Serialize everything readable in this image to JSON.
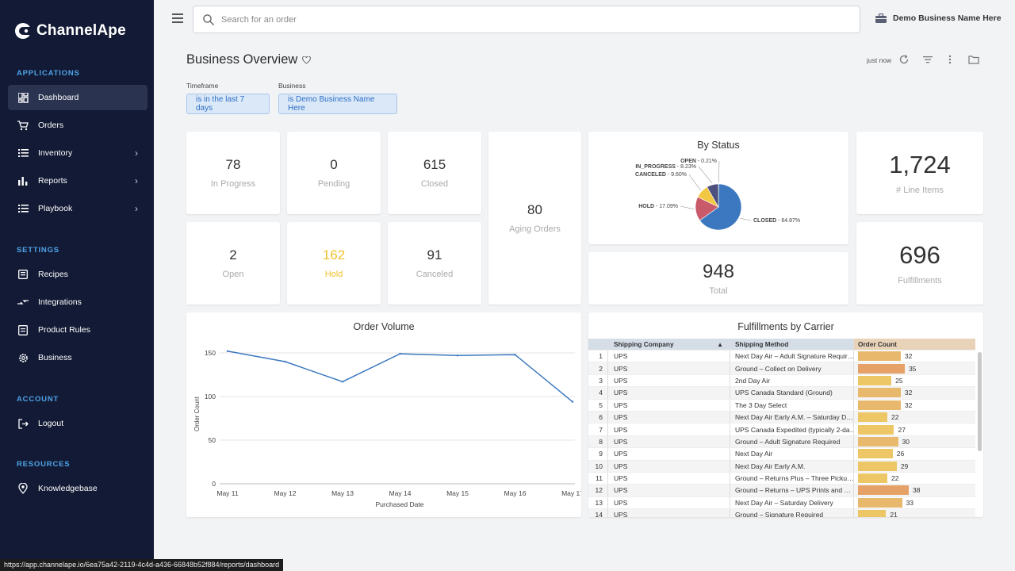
{
  "sidebar": {
    "brand": "ChannelApe",
    "sections": {
      "applications": "APPLICATIONS",
      "settings": "SETTINGS",
      "account": "ACCOUNT",
      "resources": "RESOURCES"
    },
    "items": {
      "dashboard": "Dashboard",
      "orders": "Orders",
      "inventory": "Inventory",
      "reports": "Reports",
      "playbook": "Playbook",
      "recipes": "Recipes",
      "integrations": "Integrations",
      "product_rules": "Product Rules",
      "business": "Business",
      "logout": "Logout",
      "knowledgebase": "Knowledgebase"
    },
    "accent_color": "#4fa3e8",
    "bg_color": "#121a35"
  },
  "topbar": {
    "search_placeholder": "Search for an order",
    "business_name": "Demo Business Name Here"
  },
  "header": {
    "title": "Business Overview",
    "updated": "just now",
    "filters": {
      "timeframe_label": "Timeframe",
      "timeframe_value": "is in the last 7 days",
      "business_label": "Business",
      "business_value": "is Demo Business Name Here"
    }
  },
  "stats": {
    "in_progress": {
      "value": "78",
      "label": "In Progress"
    },
    "pending": {
      "value": "0",
      "label": "Pending"
    },
    "closed": {
      "value": "615",
      "label": "Closed"
    },
    "aging": {
      "value": "80",
      "label": "Aging Orders"
    },
    "open": {
      "value": "2",
      "label": "Open"
    },
    "hold": {
      "value": "162",
      "label": "Hold",
      "color": "#f2c12e"
    },
    "canceled": {
      "value": "91",
      "label": "Canceled"
    },
    "total": {
      "value": "948",
      "label": "Total"
    },
    "line_items": {
      "value": "1,724",
      "label": "# Line Items"
    },
    "fulfillments": {
      "value": "696",
      "label": "Fulfillments"
    }
  },
  "by_status": {
    "title": "By Status",
    "slices": [
      {
        "name": "CLOSED",
        "pct": 64.87,
        "label": "CLOSED - 64.87%",
        "color": "#3b78bf"
      },
      {
        "name": "HOLD",
        "pct": 17.09,
        "label": "HOLD - 17.09%",
        "color": "#c85a6a"
      },
      {
        "name": "CANCELED",
        "pct": 9.6,
        "label": "CANCELED - 9.60%",
        "color": "#f2c744"
      },
      {
        "name": "IN_PROGRESS",
        "pct": 8.23,
        "label": "IN_PROGRESS - 8.23%",
        "color": "#4d4f7e"
      },
      {
        "name": "OPEN",
        "pct": 0.21,
        "label": "OPEN - 0.21%",
        "color": "#9aa3b5"
      }
    ]
  },
  "chart_data": {
    "type": "line",
    "title": "Order Volume",
    "xlabel": "Purchased Date",
    "ylabel": "Order Count",
    "categories": [
      "May 11",
      "May 12",
      "May 13",
      "May 14",
      "May 15",
      "May 16",
      "May 17"
    ],
    "values": [
      152,
      140,
      117,
      149,
      147,
      148,
      94
    ],
    "ylim": [
      0,
      160
    ],
    "yticks": [
      0,
      50,
      100,
      150
    ],
    "grid": true,
    "line_color": "#3b78bf"
  },
  "carrier_table": {
    "title": "Fulfillments by Carrier",
    "columns": [
      "Shipping Company",
      "Shipping Method",
      "Order Count"
    ],
    "max_count": 38,
    "rows": [
      {
        "n": "1",
        "company": "UPS",
        "method": "Next Day Air – Adult Signature Requir…",
        "count": 32
      },
      {
        "n": "2",
        "company": "UPS",
        "method": "Ground – Collect on Delivery",
        "count": 35
      },
      {
        "n": "3",
        "company": "UPS",
        "method": "2nd Day Air",
        "count": 25
      },
      {
        "n": "4",
        "company": "UPS",
        "method": "UPS Canada Standard (Ground)",
        "count": 32
      },
      {
        "n": "5",
        "company": "UPS",
        "method": "The 3 Day Select",
        "count": 32
      },
      {
        "n": "6",
        "company": "UPS",
        "method": "Next Day Air Early A.M. – Saturday D…",
        "count": 22
      },
      {
        "n": "7",
        "company": "UPS",
        "method": "UPS Canada Expedited (typically 2-da…",
        "count": 27
      },
      {
        "n": "8",
        "company": "UPS",
        "method": "Ground – Adult Signature Required",
        "count": 30
      },
      {
        "n": "9",
        "company": "UPS",
        "method": "Next Day Air",
        "count": 26
      },
      {
        "n": "10",
        "company": "UPS",
        "method": "Next Day Air Early A.M.",
        "count": 29
      },
      {
        "n": "11",
        "company": "UPS",
        "method": "Ground – Returns Plus – Three Picku…",
        "count": 22
      },
      {
        "n": "12",
        "company": "UPS",
        "method": "Ground – Returns – UPS Prints and …",
        "count": 38
      },
      {
        "n": "13",
        "company": "UPS",
        "method": "Next Day Air – Saturday Delivery",
        "count": 33
      },
      {
        "n": "14",
        "company": "UPS",
        "method": "Ground – Signature Required",
        "count": 21
      }
    ]
  },
  "status_url": "https://app.channelape.io/6ea75a42-2119-4c4d-a436-66848b52f884/reports/dashboard"
}
